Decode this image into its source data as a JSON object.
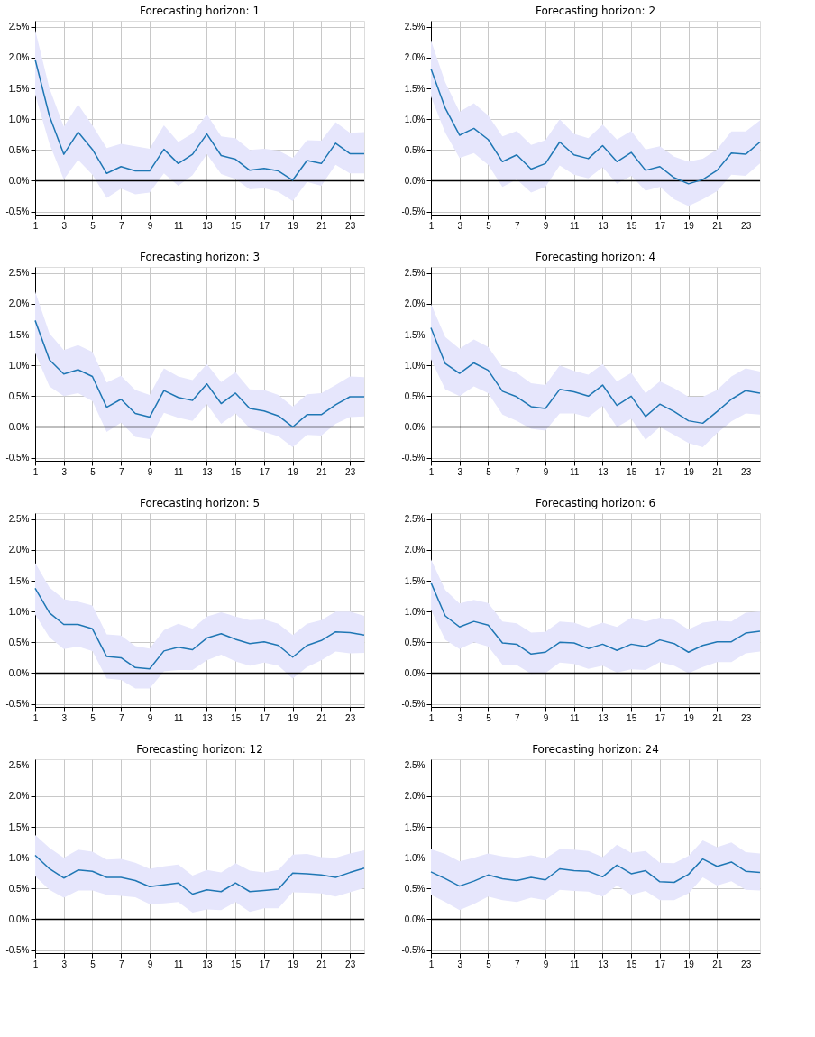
{
  "chart_data": [
    {
      "type": "line",
      "title": "Forecasting horizon: 1",
      "x": [
        1,
        2,
        3,
        4,
        5,
        6,
        7,
        8,
        9,
        10,
        11,
        12,
        13,
        14,
        15,
        16,
        17,
        18,
        19,
        20,
        21,
        22,
        23,
        24
      ],
      "xlim": [
        1,
        24
      ],
      "xticks": [
        1,
        3,
        5,
        7,
        9,
        11,
        13,
        15,
        17,
        19,
        21,
        23
      ],
      "ylim": [
        -0.55,
        2.6
      ],
      "yticks": [
        {
          "value": -0.5,
          "label": "-0.5%"
        },
        {
          "value": 0.0,
          "label": "0.0%"
        },
        {
          "value": 0.5,
          "label": "0.5%"
        },
        {
          "value": 1.0,
          "label": "1.0%"
        },
        {
          "value": 1.5,
          "label": "1.5%"
        },
        {
          "value": 2.0,
          "label": "2.0%"
        },
        {
          "value": 2.5,
          "label": "2.5%"
        }
      ],
      "grid": true,
      "ref_lines": [
        {
          "axis": "y",
          "value": 0,
          "color": "#000000"
        }
      ],
      "series": [
        {
          "color": "#1f77b4",
          "values": [
            1.97,
            1.05,
            0.43,
            0.79,
            0.51,
            0.12,
            0.23,
            0.16,
            0.16,
            0.51,
            0.28,
            0.43,
            0.76,
            0.41,
            0.35,
            0.17,
            0.2,
            0.16,
            0.01,
            0.33,
            0.28,
            0.61,
            0.44,
            0.44
          ],
          "upper": [
            2.45,
            1.5,
            0.88,
            1.24,
            0.9,
            0.53,
            0.6,
            0.56,
            0.52,
            0.9,
            0.63,
            0.77,
            1.08,
            0.72,
            0.69,
            0.5,
            0.52,
            0.49,
            0.37,
            0.66,
            0.65,
            0.95,
            0.78,
            0.79
          ],
          "lower": [
            1.4,
            0.6,
            0.02,
            0.34,
            0.1,
            -0.28,
            -0.13,
            -0.22,
            -0.19,
            0.12,
            -0.08,
            0.09,
            0.43,
            0.11,
            0.03,
            -0.14,
            -0.12,
            -0.18,
            -0.33,
            -0.02,
            -0.08,
            0.26,
            0.12,
            0.12
          ]
        }
      ]
    },
    {
      "type": "line",
      "title": "Forecasting horizon: 2",
      "x": [
        1,
        2,
        3,
        4,
        5,
        6,
        7,
        8,
        9,
        10,
        11,
        12,
        13,
        14,
        15,
        16,
        17,
        18,
        19,
        20,
        21,
        22,
        23,
        24
      ],
      "xlim": [
        1,
        24
      ],
      "xticks": [
        1,
        3,
        5,
        7,
        9,
        11,
        13,
        15,
        17,
        19,
        21,
        23
      ],
      "ylim": [
        -0.55,
        2.6
      ],
      "yticks": [
        {
          "value": -0.5,
          "label": "-0.5%"
        },
        {
          "value": 0.0,
          "label": "0.0%"
        },
        {
          "value": 0.5,
          "label": "0.5%"
        },
        {
          "value": 1.0,
          "label": "1.0%"
        },
        {
          "value": 1.5,
          "label": "1.5%"
        },
        {
          "value": 2.0,
          "label": "2.0%"
        },
        {
          "value": 2.5,
          "label": "2.5%"
        }
      ],
      "grid": true,
      "ref_lines": [
        {
          "axis": "y",
          "value": 0,
          "color": "#000000"
        }
      ],
      "series": [
        {
          "color": "#1f77b4",
          "values": [
            1.82,
            1.18,
            0.74,
            0.85,
            0.67,
            0.31,
            0.42,
            0.19,
            0.28,
            0.63,
            0.42,
            0.36,
            0.57,
            0.31,
            0.46,
            0.17,
            0.23,
            0.05,
            -0.05,
            0.02,
            0.17,
            0.45,
            0.43,
            0.63
          ],
          "upper": [
            2.28,
            1.6,
            1.12,
            1.26,
            1.06,
            0.72,
            0.81,
            0.58,
            0.66,
            1.0,
            0.76,
            0.69,
            0.91,
            0.67,
            0.81,
            0.51,
            0.56,
            0.39,
            0.31,
            0.36,
            0.51,
            0.8,
            0.8,
            0.98
          ],
          "lower": [
            1.37,
            0.78,
            0.37,
            0.45,
            0.26,
            -0.1,
            0.02,
            -0.19,
            -0.1,
            0.25,
            0.1,
            0.04,
            0.22,
            -0.05,
            0.08,
            -0.16,
            -0.1,
            -0.3,
            -0.41,
            -0.3,
            -0.17,
            0.1,
            0.08,
            0.28
          ]
        }
      ]
    },
    {
      "type": "line",
      "title": "Forecasting horizon: 3",
      "x": [
        1,
        2,
        3,
        4,
        5,
        6,
        7,
        8,
        9,
        10,
        11,
        12,
        13,
        14,
        15,
        16,
        17,
        18,
        19,
        20,
        21,
        22,
        23,
        24
      ],
      "xlim": [
        1,
        24
      ],
      "xticks": [
        1,
        3,
        5,
        7,
        9,
        11,
        13,
        15,
        17,
        19,
        21,
        23
      ],
      "ylim": [
        -0.55,
        2.6
      ],
      "yticks": [
        {
          "value": -0.5,
          "label": "-0.5%"
        },
        {
          "value": 0.0,
          "label": "0.0%"
        },
        {
          "value": 0.5,
          "label": "0.5%"
        },
        {
          "value": 1.0,
          "label": "1.0%"
        },
        {
          "value": 1.5,
          "label": "1.5%"
        },
        {
          "value": 2.0,
          "label": "2.0%"
        },
        {
          "value": 2.5,
          "label": "2.5%"
        }
      ],
      "grid": true,
      "ref_lines": [
        {
          "axis": "y",
          "value": 0,
          "color": "#000000"
        }
      ],
      "series": [
        {
          "color": "#1f77b4",
          "values": [
            1.73,
            1.09,
            0.86,
            0.93,
            0.82,
            0.32,
            0.45,
            0.22,
            0.16,
            0.59,
            0.48,
            0.43,
            0.7,
            0.38,
            0.55,
            0.3,
            0.26,
            0.18,
            0.0,
            0.2,
            0.2,
            0.36,
            0.49,
            0.49
          ],
          "upper": [
            2.2,
            1.52,
            1.25,
            1.33,
            1.22,
            0.72,
            0.83,
            0.6,
            0.52,
            0.95,
            0.82,
            0.76,
            1.02,
            0.73,
            0.89,
            0.61,
            0.6,
            0.52,
            0.33,
            0.53,
            0.55,
            0.68,
            0.82,
            0.81
          ],
          "lower": [
            1.2,
            0.66,
            0.5,
            0.55,
            0.42,
            -0.08,
            0.07,
            -0.16,
            -0.2,
            0.23,
            0.15,
            0.1,
            0.37,
            0.05,
            0.22,
            -0.02,
            -0.08,
            -0.15,
            -0.33,
            -0.13,
            -0.14,
            0.05,
            0.16,
            0.17
          ]
        }
      ]
    },
    {
      "type": "line",
      "title": "Forecasting horizon: 4",
      "x": [
        1,
        2,
        3,
        4,
        5,
        6,
        7,
        8,
        9,
        10,
        11,
        12,
        13,
        14,
        15,
        16,
        17,
        18,
        19,
        20,
        21,
        22,
        23,
        24
      ],
      "xlim": [
        1,
        24
      ],
      "xticks": [
        1,
        3,
        5,
        7,
        9,
        11,
        13,
        15,
        17,
        19,
        21,
        23
      ],
      "ylim": [
        -0.55,
        2.6
      ],
      "yticks": [
        {
          "value": -0.5,
          "label": "-0.5%"
        },
        {
          "value": 0.0,
          "label": "0.0%"
        },
        {
          "value": 0.5,
          "label": "0.5%"
        },
        {
          "value": 1.0,
          "label": "1.0%"
        },
        {
          "value": 1.5,
          "label": "1.5%"
        },
        {
          "value": 2.0,
          "label": "2.0%"
        },
        {
          "value": 2.5,
          "label": "2.5%"
        }
      ],
      "grid": true,
      "ref_lines": [
        {
          "axis": "y",
          "value": 0,
          "color": "#000000"
        }
      ],
      "series": [
        {
          "color": "#1f77b4",
          "values": [
            1.61,
            1.03,
            0.87,
            1.04,
            0.92,
            0.58,
            0.49,
            0.33,
            0.3,
            0.61,
            0.57,
            0.5,
            0.68,
            0.35,
            0.5,
            0.17,
            0.37,
            0.25,
            0.1,
            0.06,
            0.25,
            0.45,
            0.59,
            0.55
          ],
          "upper": [
            2.0,
            1.46,
            1.27,
            1.42,
            1.3,
            0.97,
            0.88,
            0.71,
            0.68,
            1.0,
            0.91,
            0.85,
            1.02,
            0.74,
            0.88,
            0.55,
            0.74,
            0.63,
            0.49,
            0.49,
            0.6,
            0.82,
            0.95,
            0.9
          ],
          "lower": [
            1.1,
            0.61,
            0.5,
            0.66,
            0.55,
            0.2,
            0.1,
            -0.03,
            -0.06,
            0.22,
            0.22,
            0.16,
            0.34,
            0.0,
            0.13,
            -0.21,
            0.0,
            -0.13,
            -0.26,
            -0.33,
            -0.1,
            0.09,
            0.22,
            0.2
          ]
        }
      ]
    },
    {
      "type": "line",
      "title": "Forecasting horizon: 5",
      "x": [
        1,
        2,
        3,
        4,
        5,
        6,
        7,
        8,
        9,
        10,
        11,
        12,
        13,
        14,
        15,
        16,
        17,
        18,
        19,
        20,
        21,
        22,
        23,
        24
      ],
      "xlim": [
        1,
        24
      ],
      "xticks": [
        1,
        3,
        5,
        7,
        9,
        11,
        13,
        15,
        17,
        19,
        21,
        23
      ],
      "ylim": [
        -0.55,
        2.6
      ],
      "yticks": [
        {
          "value": -0.5,
          "label": "-0.5%"
        },
        {
          "value": 0.0,
          "label": "0.0%"
        },
        {
          "value": 0.5,
          "label": "0.5%"
        },
        {
          "value": 1.0,
          "label": "1.0%"
        },
        {
          "value": 1.5,
          "label": "1.5%"
        },
        {
          "value": 2.0,
          "label": "2.0%"
        },
        {
          "value": 2.5,
          "label": "2.5%"
        }
      ],
      "grid": true,
      "ref_lines": [
        {
          "axis": "y",
          "value": 0,
          "color": "#000000"
        }
      ],
      "series": [
        {
          "color": "#1f77b4",
          "values": [
            1.38,
            0.98,
            0.79,
            0.79,
            0.72,
            0.27,
            0.25,
            0.09,
            0.07,
            0.36,
            0.42,
            0.38,
            0.57,
            0.64,
            0.55,
            0.48,
            0.51,
            0.45,
            0.26,
            0.45,
            0.53,
            0.67,
            0.66,
            0.62
          ],
          "upper": [
            1.79,
            1.39,
            1.2,
            1.16,
            1.1,
            0.63,
            0.61,
            0.44,
            0.4,
            0.7,
            0.8,
            0.72,
            0.92,
            0.99,
            0.92,
            0.86,
            0.87,
            0.8,
            0.62,
            0.8,
            0.86,
            1.0,
            1.0,
            0.93
          ],
          "lower": [
            0.95,
            0.58,
            0.39,
            0.43,
            0.36,
            -0.09,
            -0.11,
            -0.25,
            -0.25,
            0.03,
            0.05,
            0.05,
            0.21,
            0.3,
            0.19,
            0.12,
            0.17,
            0.12,
            -0.09,
            0.1,
            0.21,
            0.35,
            0.32,
            0.33
          ]
        }
      ]
    },
    {
      "type": "line",
      "title": "Forecasting horizon: 6",
      "x": [
        1,
        2,
        3,
        4,
        5,
        6,
        7,
        8,
        9,
        10,
        11,
        12,
        13,
        14,
        15,
        16,
        17,
        18,
        19,
        20,
        21,
        22,
        23,
        24
      ],
      "xlim": [
        1,
        24
      ],
      "xticks": [
        1,
        3,
        5,
        7,
        9,
        11,
        13,
        15,
        17,
        19,
        21,
        23
      ],
      "ylim": [
        -0.55,
        2.6
      ],
      "yticks": [
        {
          "value": -0.5,
          "label": "-0.5%"
        },
        {
          "value": 0.0,
          "label": "0.0%"
        },
        {
          "value": 0.5,
          "label": "0.5%"
        },
        {
          "value": 1.0,
          "label": "1.0%"
        },
        {
          "value": 1.5,
          "label": "1.5%"
        },
        {
          "value": 2.0,
          "label": "2.0%"
        },
        {
          "value": 2.5,
          "label": "2.5%"
        }
      ],
      "grid": true,
      "ref_lines": [
        {
          "axis": "y",
          "value": 0,
          "color": "#000000"
        }
      ],
      "series": [
        {
          "color": "#1f77b4",
          "values": [
            1.47,
            0.93,
            0.75,
            0.84,
            0.78,
            0.49,
            0.47,
            0.31,
            0.34,
            0.5,
            0.49,
            0.4,
            0.47,
            0.37,
            0.47,
            0.43,
            0.54,
            0.48,
            0.34,
            0.45,
            0.51,
            0.51,
            0.65,
            0.68
          ],
          "upper": [
            1.85,
            1.35,
            1.13,
            1.19,
            1.14,
            0.84,
            0.81,
            0.66,
            0.67,
            0.84,
            0.82,
            0.74,
            0.82,
            0.75,
            0.9,
            0.84,
            0.9,
            0.86,
            0.71,
            0.82,
            0.85,
            0.84,
            0.98,
            1.0
          ],
          "lower": [
            1.03,
            0.54,
            0.39,
            0.5,
            0.43,
            0.14,
            0.13,
            -0.01,
            0.0,
            0.17,
            0.15,
            0.07,
            0.12,
            0.01,
            0.06,
            0.05,
            0.18,
            0.12,
            0.0,
            0.1,
            0.18,
            0.18,
            0.32,
            0.35
          ]
        }
      ]
    },
    {
      "type": "line",
      "title": "Forecasting horizon: 12",
      "x": [
        1,
        2,
        3,
        4,
        5,
        6,
        7,
        8,
        9,
        10,
        11,
        12,
        13,
        14,
        15,
        16,
        17,
        18,
        19,
        20,
        21,
        22,
        23,
        24
      ],
      "xlim": [
        1,
        24
      ],
      "xticks": [
        1,
        3,
        5,
        7,
        9,
        11,
        13,
        15,
        17,
        19,
        21,
        23
      ],
      "ylim": [
        -0.55,
        2.6
      ],
      "yticks": [
        {
          "value": -0.5,
          "label": "-0.5%"
        },
        {
          "value": 0.0,
          "label": "0.0%"
        },
        {
          "value": 0.5,
          "label": "0.5%"
        },
        {
          "value": 1.0,
          "label": "1.0%"
        },
        {
          "value": 1.5,
          "label": "1.5%"
        },
        {
          "value": 2.0,
          "label": "2.0%"
        },
        {
          "value": 2.5,
          "label": "2.5%"
        }
      ],
      "grid": true,
      "ref_lines": [
        {
          "axis": "y",
          "value": 0,
          "color": "#000000"
        }
      ],
      "series": [
        {
          "color": "#1f77b4",
          "values": [
            1.04,
            0.82,
            0.67,
            0.8,
            0.78,
            0.68,
            0.68,
            0.63,
            0.53,
            0.56,
            0.59,
            0.41,
            0.48,
            0.45,
            0.59,
            0.45,
            0.47,
            0.49,
            0.75,
            0.74,
            0.72,
            0.68,
            0.76,
            0.83
          ],
          "upper": [
            1.37,
            1.16,
            1.0,
            1.13,
            1.1,
            0.97,
            0.98,
            0.92,
            0.82,
            0.86,
            0.89,
            0.71,
            0.8,
            0.76,
            0.91,
            0.79,
            0.76,
            0.8,
            1.05,
            1.06,
            1.01,
            1.0,
            1.07,
            1.12
          ],
          "lower": [
            0.7,
            0.48,
            0.35,
            0.47,
            0.47,
            0.4,
            0.38,
            0.36,
            0.25,
            0.26,
            0.28,
            0.11,
            0.16,
            0.15,
            0.28,
            0.12,
            0.18,
            0.18,
            0.44,
            0.43,
            0.42,
            0.37,
            0.44,
            0.51
          ]
        }
      ]
    },
    {
      "type": "line",
      "title": "Forecasting horizon: 24",
      "x": [
        1,
        2,
        3,
        4,
        5,
        6,
        7,
        8,
        9,
        10,
        11,
        12,
        13,
        14,
        15,
        16,
        17,
        18,
        19,
        20,
        21,
        22,
        23,
        24
      ],
      "xlim": [
        1,
        24
      ],
      "xticks": [
        1,
        3,
        5,
        7,
        9,
        11,
        13,
        15,
        17,
        19,
        21,
        23
      ],
      "ylim": [
        -0.55,
        2.6
      ],
      "yticks": [
        {
          "value": -0.5,
          "label": "-0.5%"
        },
        {
          "value": 0.0,
          "label": "0.0%"
        },
        {
          "value": 0.5,
          "label": "0.5%"
        },
        {
          "value": 1.0,
          "label": "1.0%"
        },
        {
          "value": 1.5,
          "label": "1.5%"
        },
        {
          "value": 2.0,
          "label": "2.0%"
        },
        {
          "value": 2.5,
          "label": "2.5%"
        }
      ],
      "grid": true,
      "ref_lines": [
        {
          "axis": "y",
          "value": 0,
          "color": "#000000"
        }
      ],
      "series": [
        {
          "color": "#1f77b4",
          "values": [
            0.77,
            0.66,
            0.54,
            0.62,
            0.72,
            0.66,
            0.63,
            0.68,
            0.64,
            0.82,
            0.79,
            0.78,
            0.69,
            0.88,
            0.74,
            0.79,
            0.61,
            0.6,
            0.73,
            0.98,
            0.86,
            0.93,
            0.78,
            0.76
          ],
          "upper": [
            1.14,
            1.06,
            0.94,
            1.0,
            1.07,
            1.02,
            1.0,
            1.04,
            0.99,
            1.14,
            1.13,
            1.11,
            1.01,
            1.21,
            1.08,
            1.11,
            0.92,
            0.91,
            1.03,
            1.28,
            1.17,
            1.25,
            1.09,
            1.07
          ],
          "lower": [
            0.4,
            0.28,
            0.15,
            0.25,
            0.37,
            0.31,
            0.28,
            0.35,
            0.31,
            0.48,
            0.46,
            0.45,
            0.37,
            0.55,
            0.4,
            0.46,
            0.31,
            0.31,
            0.42,
            0.68,
            0.55,
            0.62,
            0.48,
            0.47
          ]
        }
      ]
    }
  ]
}
